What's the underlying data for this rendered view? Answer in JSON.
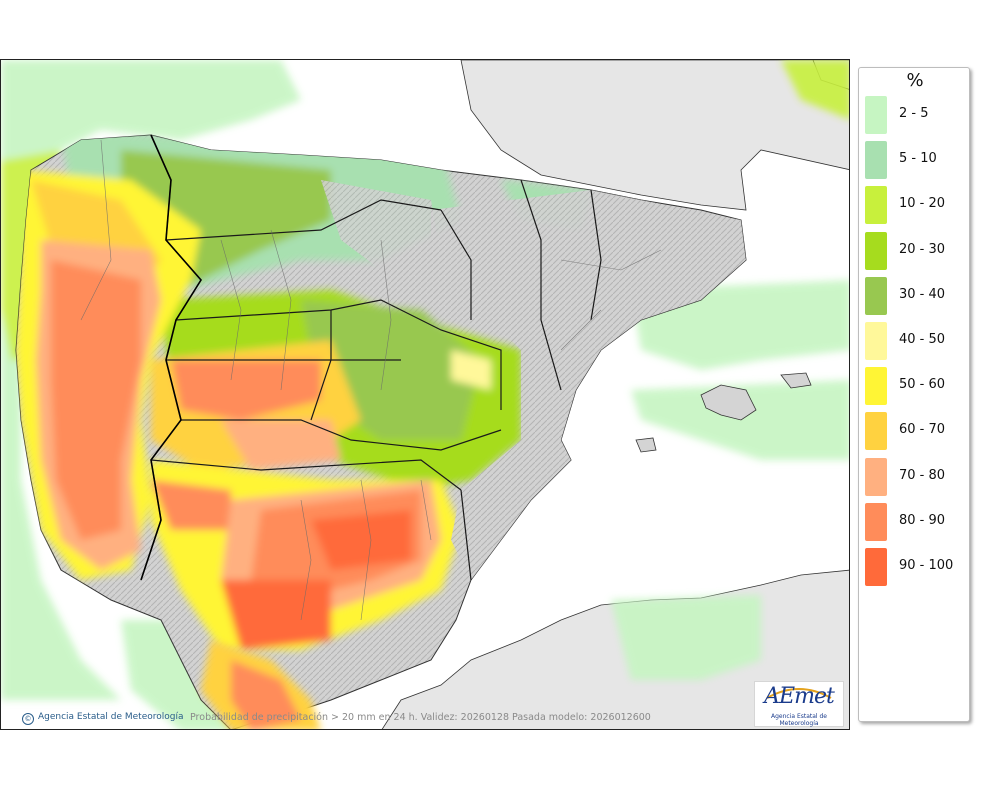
{
  "legend": {
    "title": "%",
    "items": [
      {
        "label": "2 - 5",
        "color": "#c6f5c2"
      },
      {
        "label": "5 - 10",
        "color": "#a8e0b0"
      },
      {
        "label": "10 - 20",
        "color": "#c8f03c"
      },
      {
        "label": "20 - 30",
        "color": "#a6dc1e"
      },
      {
        "label": "30 - 40",
        "color": "#98c850"
      },
      {
        "label": "40 - 50",
        "color": "#fff89a"
      },
      {
        "label": "50 - 60",
        "color": "#fff535"
      },
      {
        "label": "60 - 70",
        "color": "#ffd240"
      },
      {
        "label": "70 - 80",
        "color": "#ffb080"
      },
      {
        "label": "80 - 90",
        "color": "#ff8c5a"
      },
      {
        "label": "90 - 100",
        "color": "#ff6a3a"
      }
    ]
  },
  "footer": {
    "credit": "Agencia Estatal de Meteorología",
    "caption": "Probabilidad de precipitación > 20 mm en 24 h. Validez: 20260128 Pasada modelo: 2026012600"
  },
  "logo": {
    "text": "AEmet",
    "subtitle": "Agencia Estatal de Meteorología"
  },
  "colors": {
    "land_dry": "#d4d4d4",
    "foreign_land": "#e6e6e6",
    "sea": "#ffffff",
    "border": "#222222"
  }
}
